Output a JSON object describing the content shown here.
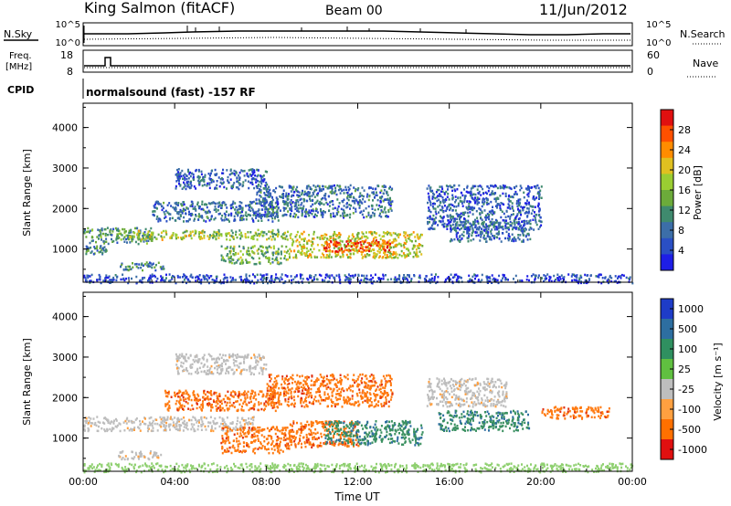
{
  "header": {
    "station": "King Salmon (fitACF)",
    "beam": "Beam 00",
    "date": "11/Jun/2012"
  },
  "top_panels": {
    "nsky_label": "N.Sky",
    "nsearch_label": "N.Search",
    "noise_ticks_left": [
      "10^5",
      "10^0"
    ],
    "noise_ticks_right": [
      "10^5",
      "10^0"
    ],
    "freq_label_line1": "Freq.",
    "freq_label_line2": "[MHz]",
    "freq_ticks": [
      "18",
      "8"
    ],
    "nave_label": "Nave",
    "nave_ticks": [
      "60",
      "0"
    ],
    "cpid_label": "CPID",
    "cpid_text": "normalsound (fast) -157 RF"
  },
  "chart_data": [
    {
      "type": "heatmap",
      "name": "power-panel",
      "ylabel": "Slant Range [km]",
      "xlabel": "",
      "ylim": [
        180,
        4600
      ],
      "xlim": [
        0,
        24
      ],
      "y_ticks": [
        "1000",
        "2000",
        "3000",
        "4000"
      ],
      "x_ticks": [
        "00:00",
        "04:00",
        "08:00",
        "12:00",
        "16:00",
        "20:00",
        "00:00"
      ],
      "colorbar_label": "Power [dB]",
      "colorbar_ticks": [
        "28",
        "24",
        "20",
        "16",
        "12",
        "8",
        "4"
      ],
      "colorbar_colors": [
        "#1e1ee6",
        "#2a4fc4",
        "#3c6ea8",
        "#3f8a6e",
        "#6cab3a",
        "#9acd32",
        "#e0c020",
        "#ff8c00",
        "#ff5000",
        "#e01010"
      ],
      "echo_regions": [
        {
          "t0": 0.0,
          "t1": 3.0,
          "r0": 1150,
          "r1": 1550,
          "level": 0.35
        },
        {
          "t0": 1.5,
          "t1": 5.5,
          "r0": 1250,
          "r1": 1480,
          "level": 0.55
        },
        {
          "t0": 5.5,
          "t1": 9.0,
          "r0": 1250,
          "r1": 1500,
          "level": 0.5
        },
        {
          "t0": 6.0,
          "t1": 9.0,
          "r0": 650,
          "r1": 1100,
          "level": 0.45
        },
        {
          "t0": 9.0,
          "t1": 14.8,
          "r0": 800,
          "r1": 1450,
          "level": 0.6
        },
        {
          "t0": 10.5,
          "t1": 13.5,
          "r0": 950,
          "r1": 1250,
          "level": 0.85
        },
        {
          "t0": 0.0,
          "t1": 1.0,
          "r0": 900,
          "r1": 1100,
          "level": 0.3
        },
        {
          "t0": 1.5,
          "t1": 3.5,
          "r0": 500,
          "r1": 700,
          "level": 0.3
        },
        {
          "t0": 3.0,
          "t1": 8.5,
          "r0": 1700,
          "r1": 2200,
          "level": 0.25
        },
        {
          "t0": 4.0,
          "t1": 8.0,
          "r0": 2500,
          "r1": 3000,
          "level": 0.2
        },
        {
          "t0": 7.5,
          "t1": 13.5,
          "r0": 1800,
          "r1": 2600,
          "level": 0.25
        },
        {
          "t0": 15.0,
          "t1": 20.0,
          "r0": 1500,
          "r1": 2600,
          "level": 0.2
        },
        {
          "t0": 16.0,
          "t1": 19.5,
          "r0": 1200,
          "r1": 1700,
          "level": 0.22
        },
        {
          "t0": 0.0,
          "t1": 24.0,
          "r0": 180,
          "r1": 400,
          "level": 0.15
        }
      ]
    },
    {
      "type": "heatmap",
      "name": "velocity-panel",
      "ylabel": "Slant Range [km]",
      "xlabel": "Time UT",
      "ylim": [
        180,
        4600
      ],
      "xlim": [
        0,
        24
      ],
      "y_ticks": [
        "1000",
        "2000",
        "3000",
        "4000"
      ],
      "x_ticks": [
        "00:00",
        "04:00",
        "08:00",
        "12:00",
        "16:00",
        "20:00",
        "00:00"
      ],
      "colorbar_label": "Velocity [m s⁻¹]",
      "colorbar_ticks": [
        "1000",
        "500",
        "100",
        "25",
        "-25",
        "-100",
        "-500",
        "-1000"
      ],
      "colorbar_colors": [
        "#1e3cc8",
        "#2d6ea0",
        "#2f9060",
        "#60c040",
        "#bebebe",
        "#ffa040",
        "#ff7000",
        "#e01010"
      ],
      "echo_regions": [
        {
          "t0": 0.0,
          "t1": 7.5,
          "r0": 1200,
          "r1": 1550,
          "cls": "gray"
        },
        {
          "t0": 1.5,
          "t1": 3.5,
          "r0": 500,
          "r1": 700,
          "cls": "gray"
        },
        {
          "t0": 6.0,
          "t1": 9.0,
          "r0": 650,
          "r1": 1300,
          "cls": "orange"
        },
        {
          "t0": 9.0,
          "t1": 12.0,
          "r0": 800,
          "r1": 1450,
          "cls": "orange"
        },
        {
          "t0": 10.5,
          "t1": 14.8,
          "r0": 850,
          "r1": 1450,
          "cls": "green"
        },
        {
          "t0": 3.5,
          "t1": 8.5,
          "r0": 1700,
          "r1": 2200,
          "cls": "orange"
        },
        {
          "t0": 4.0,
          "t1": 8.0,
          "r0": 2600,
          "r1": 3100,
          "cls": "gray"
        },
        {
          "t0": 8.0,
          "t1": 13.5,
          "r0": 1800,
          "r1": 2600,
          "cls": "orange"
        },
        {
          "t0": 15.0,
          "t1": 18.5,
          "r0": 1800,
          "r1": 2500,
          "cls": "gray"
        },
        {
          "t0": 15.5,
          "t1": 19.5,
          "r0": 1200,
          "r1": 1700,
          "cls": "green"
        },
        {
          "t0": 20.0,
          "t1": 23.0,
          "r0": 1500,
          "r1": 1800,
          "cls": "orange"
        },
        {
          "t0": 0.0,
          "t1": 24.0,
          "r0": 180,
          "r1": 400,
          "cls": "lightgreen"
        }
      ]
    }
  ]
}
